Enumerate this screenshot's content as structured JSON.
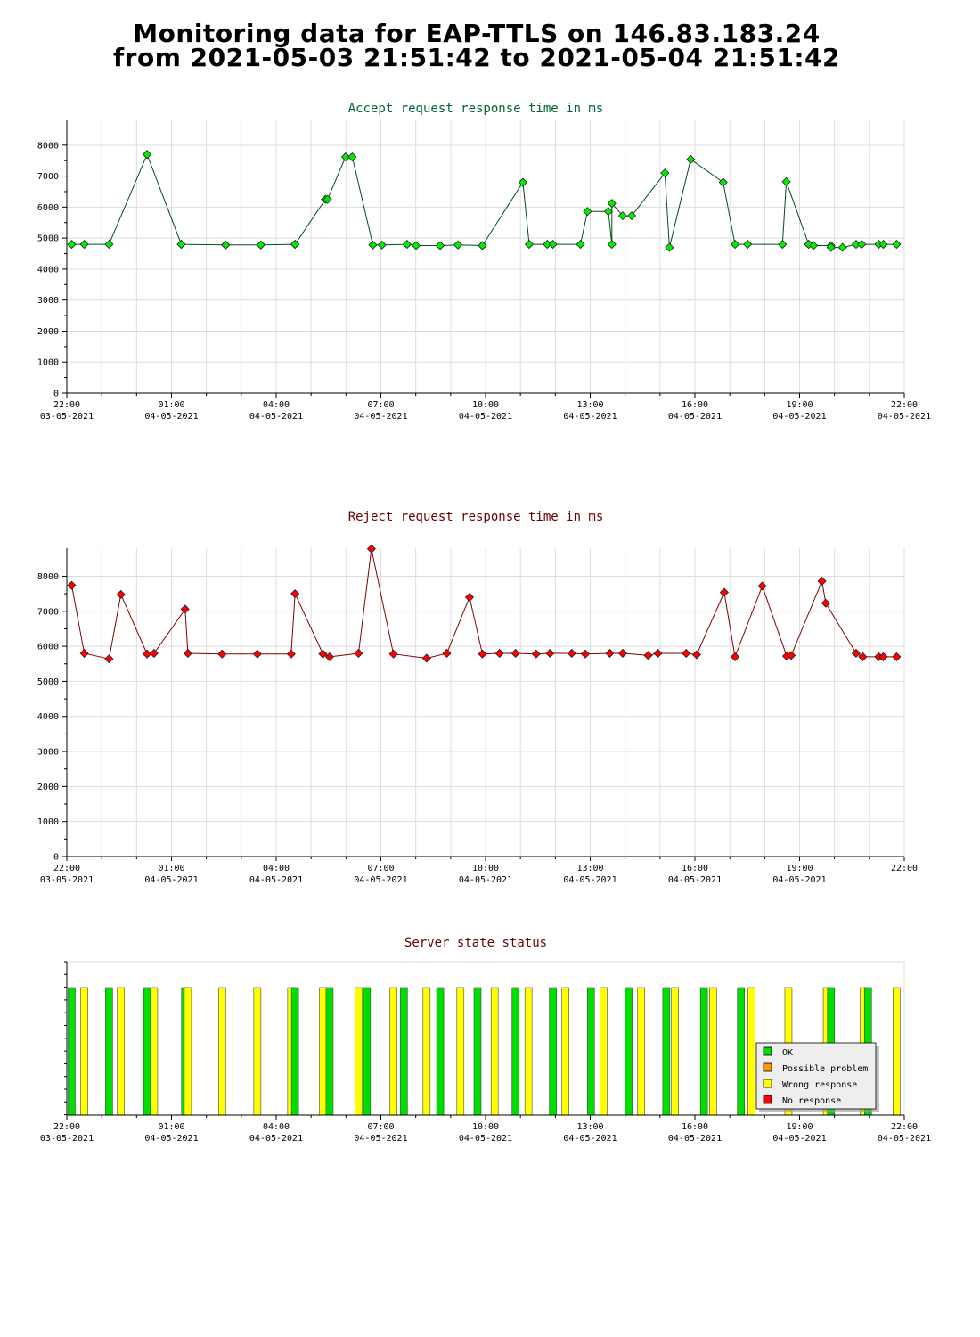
{
  "page": {
    "title_line1": "Monitoring data for EAP-TTLS on 146.83.183.24",
    "title_line2": "from 2021-05-03 21:51:42 to 2021-05-04 21:51:42"
  },
  "colors": {
    "accept_title": "#006633",
    "reject_title": "#660000",
    "accept_line": "#004d1a",
    "reject_line": "#800000",
    "accept_marker": "#00ee00",
    "reject_marker": "#ff0000",
    "ok": "#00dd00",
    "possible_problem": "#ff9900",
    "wrong_response": "#ffff00",
    "no_response": "#ff0000",
    "grid": "#dddddd"
  },
  "chart_data": [
    {
      "type": "line",
      "title": "Accept request response time in ms",
      "xlabel": "",
      "ylabel": "",
      "x_unit": "hours since 2021-05-03 22:00",
      "xlim": [
        0,
        24
      ],
      "ylim": [
        0,
        8800
      ],
      "yticks": [
        0,
        1000,
        2000,
        3000,
        4000,
        5000,
        6000,
        7000,
        8000
      ],
      "grid": true,
      "marker_color": "#00ee00",
      "line_color": "#004d1a",
      "x_tick_labels": [
        {
          "time": "22:00",
          "date": "03-05-2021"
        },
        {
          "time": "01:00",
          "date": "04-05-2021"
        },
        {
          "time": "04:00",
          "date": "04-05-2021"
        },
        {
          "time": "07:00",
          "date": "04-05-2021"
        },
        {
          "time": "10:00",
          "date": "04-05-2021"
        },
        {
          "time": "13:00",
          "date": "04-05-2021"
        },
        {
          "time": "16:00",
          "date": "04-05-2021"
        },
        {
          "time": "19:00",
          "date": "04-05-2021"
        },
        {
          "time": "22:00",
          "date": "04-05-2021"
        }
      ],
      "x": [
        0.14,
        0.5,
        1.21,
        2.3,
        2.3,
        3.28,
        3.28,
        4.55,
        4.55,
        5.56,
        5.56,
        6.54,
        6.54,
        7.41,
        7.47,
        7.99,
        8.18,
        8.77,
        9.03,
        9.75,
        10.01,
        10.7,
        10.7,
        11.21,
        11.91,
        11.91,
        13.07,
        13.25,
        13.77,
        13.93,
        14.72,
        14.92,
        15.52,
        15.62,
        15.62,
        15.93,
        16.19,
        17.14,
        17.27,
        17.88,
        18.81,
        19.15,
        19.51,
        20.51,
        20.62,
        21.26,
        21.26,
        21.4,
        21.9,
        21.9,
        22.23,
        22.62,
        22.78,
        23.27,
        23.4,
        23.78
      ],
      "y": [
        4800,
        4800,
        4800,
        7700,
        7700,
        4800,
        4800,
        4780,
        4780,
        4780,
        4780,
        4800,
        4800,
        6250,
        6250,
        7620,
        7620,
        4780,
        4780,
        4800,
        4760,
        4760,
        4760,
        4780,
        4760,
        4760,
        6800,
        4800,
        4800,
        4800,
        4800,
        5860,
        5860,
        4800,
        6120,
        5720,
        5720,
        7100,
        4700,
        7540,
        6800,
        4800,
        4800,
        4800,
        6820,
        4800,
        4800,
        4760,
        4760,
        4700,
        4700,
        4800,
        4800,
        4800,
        4800,
        4800
      ]
    },
    {
      "type": "line",
      "title": "Reject request response time in ms",
      "xlabel": "",
      "ylabel": "",
      "x_unit": "hours since 2021-05-03 22:00",
      "xlim": [
        0,
        24
      ],
      "ylim": [
        0,
        8800
      ],
      "yticks": [
        0,
        1000,
        2000,
        3000,
        4000,
        5000,
        6000,
        7000,
        8000
      ],
      "grid": true,
      "marker_color": "#ff0000",
      "line_color": "#800000",
      "x_tick_labels": [
        {
          "time": "22:00",
          "date": "03-05-2021"
        },
        {
          "time": "01:00",
          "date": "04-05-2021"
        },
        {
          "time": "04:00",
          "date": "04-05-2021"
        },
        {
          "time": "07:00",
          "date": "04-05-2021"
        },
        {
          "time": "10:00",
          "date": "04-05-2021"
        },
        {
          "time": "13:00",
          "date": "04-05-2021"
        },
        {
          "time": "16:00",
          "date": "04-05-2021"
        },
        {
          "time": "19:00",
          "date": "04-05-2021"
        },
        {
          "time": "22:00",
          "date": ""
        }
      ],
      "x": [
        0.14,
        0.5,
        1.21,
        1.55,
        2.3,
        2.5,
        3.39,
        3.47,
        4.45,
        5.46,
        6.43,
        6.54,
        7.34,
        7.53,
        8.36,
        8.73,
        9.36,
        10.31,
        10.89,
        11.54,
        11.91,
        12.4,
        12.86,
        13.45,
        13.85,
        14.47,
        14.86,
        15.56,
        15.93,
        16.66,
        16.94,
        17.75,
        18.05,
        18.84,
        19.15,
        19.93,
        20.63,
        20.76,
        21.64,
        21.75,
        22.62,
        22.81,
        23.27,
        23.4,
        23.78
      ],
      "y": [
        7740,
        5800,
        5640,
        7480,
        5780,
        5800,
        7060,
        5800,
        5780,
        5780,
        5780,
        7500,
        5780,
        5700,
        5800,
        8780,
        5780,
        5660,
        5800,
        7400,
        5780,
        5800,
        5800,
        5780,
        5800,
        5800,
        5780,
        5800,
        5800,
        5740,
        5800,
        5800,
        5760,
        7540,
        5700,
        7720,
        5720,
        5740,
        7860,
        7230,
        5800,
        5700,
        5700,
        5700,
        5700
      ]
    },
    {
      "type": "bar",
      "title": "Server state status",
      "xlabel": "",
      "ylabel": "",
      "x_unit": "hours since 2021-05-03 22:00",
      "xlim": [
        0,
        24
      ],
      "grid": false,
      "x_tick_labels": [
        {
          "time": "22:00",
          "date": "03-05-2021"
        },
        {
          "time": "01:00",
          "date": "04-05-2021"
        },
        {
          "time": "04:00",
          "date": "04-05-2021"
        },
        {
          "time": "07:00",
          "date": "04-05-2021"
        },
        {
          "time": "10:00",
          "date": "04-05-2021"
        },
        {
          "time": "13:00",
          "date": "04-05-2021"
        },
        {
          "time": "16:00",
          "date": "04-05-2021"
        },
        {
          "time": "19:00",
          "date": "04-05-2021"
        },
        {
          "time": "22:00",
          "date": "04-05-2021"
        }
      ],
      "legend": {
        "position": "bottom-right",
        "entries": [
          {
            "label": "OK",
            "color": "#00dd00"
          },
          {
            "label": "Possible problem",
            "color": "#ff9900"
          },
          {
            "label": "Wrong response",
            "color": "#ffff00"
          },
          {
            "label": "No response",
            "color": "#ff0000"
          }
        ]
      },
      "bars": [
        {
          "x": 0.14,
          "status": "OK"
        },
        {
          "x": 0.5,
          "status": "Wrong response"
        },
        {
          "x": 1.21,
          "status": "OK"
        },
        {
          "x": 1.55,
          "status": "Wrong response"
        },
        {
          "x": 2.3,
          "status": "OK"
        },
        {
          "x": 2.5,
          "status": "Wrong response"
        },
        {
          "x": 3.39,
          "status": "OK"
        },
        {
          "x": 3.47,
          "status": "Wrong response"
        },
        {
          "x": 4.45,
          "status": "Wrong response"
        },
        {
          "x": 5.46,
          "status": "Wrong response"
        },
        {
          "x": 6.43,
          "status": "Wrong response"
        },
        {
          "x": 6.54,
          "status": "OK"
        },
        {
          "x": 7.34,
          "status": "Wrong response"
        },
        {
          "x": 7.53,
          "status": "OK"
        },
        {
          "x": 8.36,
          "status": "Wrong response"
        },
        {
          "x": 8.6,
          "status": "OK"
        },
        {
          "x": 9.36,
          "status": "Wrong response"
        },
        {
          "x": 9.66,
          "status": "OK"
        },
        {
          "x": 10.31,
          "status": "Wrong response"
        },
        {
          "x": 10.7,
          "status": "OK"
        },
        {
          "x": 11.28,
          "status": "Wrong response"
        },
        {
          "x": 11.77,
          "status": "OK"
        },
        {
          "x": 12.26,
          "status": "Wrong response"
        },
        {
          "x": 12.86,
          "status": "OK"
        },
        {
          "x": 13.23,
          "status": "Wrong response"
        },
        {
          "x": 13.93,
          "status": "OK"
        },
        {
          "x": 14.29,
          "status": "Wrong response"
        },
        {
          "x": 15.02,
          "status": "OK"
        },
        {
          "x": 15.38,
          "status": "Wrong response"
        },
        {
          "x": 16.1,
          "status": "OK"
        },
        {
          "x": 16.46,
          "status": "Wrong response"
        },
        {
          "x": 17.18,
          "status": "OK"
        },
        {
          "x": 17.43,
          "status": "Wrong response"
        },
        {
          "x": 18.26,
          "status": "OK"
        },
        {
          "x": 18.52,
          "status": "Wrong response"
        },
        {
          "x": 19.32,
          "status": "OK"
        },
        {
          "x": 19.62,
          "status": "Wrong response"
        },
        {
          "x": 20.68,
          "status": "Wrong response"
        },
        {
          "x": 21.78,
          "status": "Wrong response"
        },
        {
          "x": 21.9,
          "status": "OK"
        },
        {
          "x": 22.84,
          "status": "Wrong response"
        },
        {
          "x": 22.96,
          "status": "OK"
        },
        {
          "x": 23.78,
          "status": "Wrong response"
        }
      ]
    }
  ]
}
